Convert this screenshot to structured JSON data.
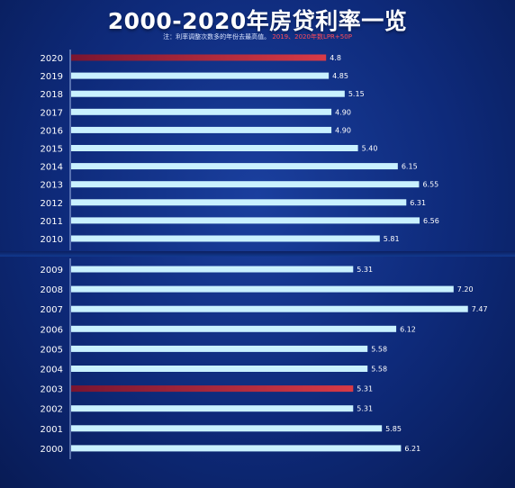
{
  "title": "2000-2020年房贷利率一览",
  "note": {
    "prefix": "注：利率调整次数多的年份去最高值。",
    "highlight": "2019、2020年数LPR+50P"
  },
  "colors": {
    "bar": "#c9f1ff",
    "highlight_bar": "#d83a46",
    "axis": "#9fb6e6"
  },
  "chart_data": [
    {
      "type": "bar",
      "orientation": "horizontal",
      "title": "2000-2020年房贷利率一览",
      "categories": [
        "2020",
        "2019",
        "2018",
        "2017",
        "2016",
        "2015",
        "2014",
        "2013",
        "2012",
        "2011",
        "2010"
      ],
      "values": [
        4.8,
        4.85,
        5.15,
        4.9,
        4.9,
        5.4,
        6.15,
        6.55,
        6.31,
        6.56,
        5.81
      ],
      "value_labels": [
        "4.8",
        "4.85",
        "5.15",
        "4.90",
        "4.90",
        "5.40",
        "6.15",
        "6.55",
        "6.31",
        "6.56",
        "5.81"
      ],
      "highlighted": [
        "2020"
      ],
      "xlim": [
        0,
        8
      ]
    },
    {
      "type": "bar",
      "orientation": "horizontal",
      "categories": [
        "2009",
        "2008",
        "2007",
        "2006",
        "2005",
        "2004",
        "2003",
        "2002",
        "2001",
        "2000"
      ],
      "values": [
        5.31,
        7.2,
        7.47,
        6.12,
        5.58,
        5.58,
        5.31,
        5.31,
        5.85,
        6.21
      ],
      "value_labels": [
        "5.31",
        "7.20",
        "7.47",
        "6.12",
        "5.58",
        "5.58",
        "5.31",
        "5.31",
        "5.85",
        "6.21"
      ],
      "highlighted": [
        "2003"
      ],
      "xlim": [
        0,
        8
      ]
    }
  ]
}
